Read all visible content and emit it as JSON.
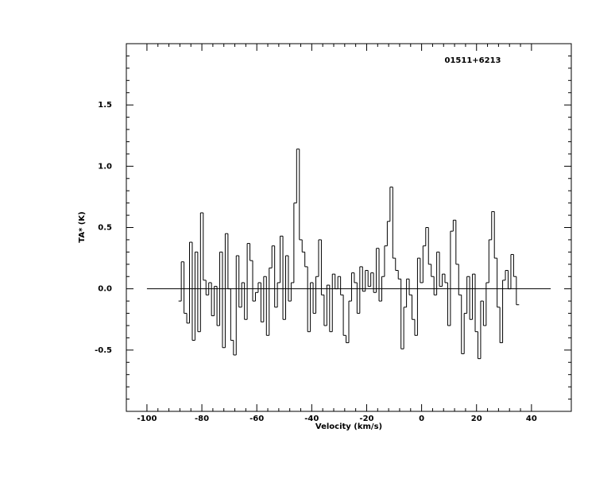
{
  "chart_data": {
    "type": "step",
    "annotation": "01511+6213",
    "x_label": "Velocity (km/s)",
    "y_label": "TA* (K)",
    "xlim": [
      -107.5,
      54.5
    ],
    "ylim": [
      -1.0,
      2.0
    ],
    "xticks": [
      -100,
      -80,
      -60,
      -40,
      -20,
      0,
      20,
      40
    ],
    "yticks": [
      -0.5,
      {
        "value": 0,
        "label": "0.0"
      },
      0.5,
      {
        "value": 1,
        "label": "1.0"
      },
      1.5
    ],
    "color": "#000000",
    "baseline": {
      "y": 0,
      "x": [
        -100,
        47
      ]
    },
    "x": [
      -88,
      -87,
      -86,
      -85,
      -84,
      -83,
      -82,
      -81,
      -80,
      -79,
      -78,
      -77,
      -76,
      -75,
      -74,
      -73,
      -72,
      -71,
      -70,
      -69,
      -68,
      -67,
      -66,
      -65,
      -64,
      -63,
      -62,
      -61,
      -60,
      -59,
      -58,
      -57,
      -56,
      -55,
      -54,
      -53,
      -52,
      -51,
      -50,
      -49,
      -48,
      -47,
      -46,
      -45,
      -44,
      -43,
      -42,
      -41,
      -40,
      -39,
      -38,
      -37,
      -36,
      -35,
      -34,
      -33,
      -32,
      -31,
      -30,
      -29,
      -28,
      -27,
      -26,
      -25,
      -24,
      -23,
      -22,
      -21,
      -20,
      -19,
      -18,
      -17,
      -16,
      -15,
      -14,
      -13,
      -12,
      -11,
      -10,
      -9,
      -8,
      -7,
      -6,
      -5,
      -4,
      -3,
      -2,
      -1,
      0,
      1,
      2,
      3,
      4,
      5,
      6,
      7,
      8,
      9,
      10,
      11,
      12,
      13,
      14,
      15,
      16,
      17,
      18,
      19,
      20,
      21,
      22,
      23,
      24,
      25,
      26,
      27,
      28,
      29,
      30,
      31,
      32,
      33,
      34,
      35
    ],
    "values": [
      -0.1,
      0.22,
      -0.2,
      -0.28,
      0.38,
      -0.42,
      0.3,
      -0.35,
      0.62,
      0.07,
      -0.05,
      0.05,
      -0.22,
      0.02,
      -0.3,
      0.3,
      -0.48,
      0.45,
      0.0,
      -0.42,
      -0.54,
      0.27,
      -0.15,
      0.05,
      -0.25,
      0.37,
      0.23,
      -0.1,
      -0.03,
      0.05,
      -0.27,
      0.1,
      -0.38,
      0.17,
      0.35,
      -0.15,
      0.05,
      0.43,
      -0.25,
      0.27,
      -0.1,
      0.05,
      0.7,
      1.14,
      0.4,
      0.3,
      0.18,
      -0.35,
      0.05,
      -0.2,
      0.1,
      0.4,
      -0.05,
      -0.3,
      0.03,
      -0.35,
      0.12,
      0.0,
      0.1,
      -0.05,
      -0.38,
      -0.44,
      -0.1,
      0.13,
      0.05,
      -0.2,
      0.18,
      -0.02,
      0.15,
      0.02,
      0.13,
      -0.03,
      0.33,
      -0.1,
      0.1,
      0.35,
      0.55,
      0.83,
      0.25,
      0.15,
      0.08,
      -0.49,
      -0.15,
      0.08,
      -0.05,
      -0.25,
      -0.38,
      0.25,
      0.05,
      0.35,
      0.5,
      0.2,
      0.1,
      -0.05,
      0.3,
      0.02,
      0.12,
      0.05,
      -0.3,
      0.47,
      0.56,
      0.2,
      -0.05,
      -0.53,
      -0.2,
      0.1,
      -0.25,
      0.12,
      -0.35,
      -0.57,
      -0.1,
      -0.3,
      0.05,
      0.4,
      0.63,
      0.25,
      -0.15,
      -0.44,
      0.07,
      0.15,
      0.0,
      0.28,
      0.1,
      -0.13
    ]
  }
}
